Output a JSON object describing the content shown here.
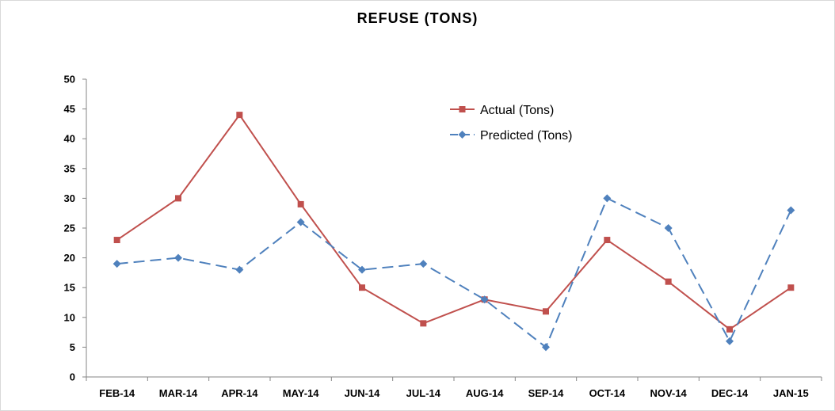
{
  "chart_data": {
    "type": "line",
    "title": "REFUSE (TONS)",
    "xlabel": "",
    "ylabel": "",
    "categories": [
      "FEB-14",
      "MAR-14",
      "APR-14",
      "MAY-14",
      "JUN-14",
      "JUL-14",
      "AUG-14",
      "SEP-14",
      "OCT-14",
      "NOV-14",
      "DEC-14",
      "JAN-15"
    ],
    "ylim": [
      0,
      50
    ],
    "yticks": [
      0,
      5,
      10,
      15,
      20,
      25,
      30,
      35,
      40,
      45,
      50
    ],
    "grid": false,
    "legend_position": "top-right",
    "series": [
      {
        "name": "Actual (Tons)",
        "color": "#c0504d",
        "marker": "square",
        "line_style": "solid",
        "values": [
          23,
          30,
          44,
          29,
          15,
          9,
          13,
          11,
          23,
          16,
          8,
          15
        ]
      },
      {
        "name": "Predicted (Tons)",
        "color": "#4f81bd",
        "marker": "diamond",
        "line_style": "dashed",
        "values": [
          19,
          20,
          18,
          26,
          18,
          19,
          13,
          5,
          30,
          25,
          6,
          28
        ]
      }
    ]
  }
}
